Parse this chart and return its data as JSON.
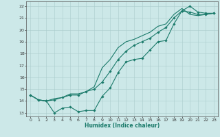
{
  "xlabel": "Humidex (Indice chaleur)",
  "background_color": "#cce8e8",
  "grid_color": "#aacccc",
  "line_color": "#1a7a6a",
  "xlim": [
    -0.5,
    23.5
  ],
  "ylim": [
    12.7,
    22.4
  ],
  "xticks": [
    0,
    1,
    2,
    3,
    4,
    5,
    6,
    7,
    8,
    9,
    10,
    11,
    12,
    13,
    14,
    15,
    16,
    17,
    18,
    19,
    20,
    21,
    22,
    23
  ],
  "yticks": [
    13,
    14,
    15,
    16,
    17,
    18,
    19,
    20,
    21,
    22
  ],
  "series1_x": [
    0,
    1,
    2,
    3,
    4,
    5,
    6,
    7,
    8,
    9,
    10,
    11,
    12,
    13,
    14,
    15,
    16,
    17,
    18,
    19,
    20,
    21,
    22,
    23
  ],
  "series1_y": [
    14.5,
    14.1,
    14.0,
    13.0,
    13.4,
    13.5,
    13.1,
    13.2,
    13.2,
    14.4,
    15.1,
    16.4,
    17.3,
    17.5,
    17.6,
    18.3,
    19.0,
    19.1,
    20.5,
    21.6,
    22.0,
    21.5,
    21.4,
    21.4
  ],
  "series2_x": [
    0,
    1,
    2,
    3,
    4,
    5,
    6,
    7,
    8,
    9,
    10,
    11,
    12,
    13,
    14,
    15,
    16,
    17,
    18,
    19,
    20,
    21,
    22,
    23
  ],
  "series2_y": [
    14.5,
    14.1,
    14.0,
    14.2,
    14.3,
    14.6,
    14.6,
    14.8,
    15.2,
    16.8,
    17.5,
    18.5,
    19.0,
    19.2,
    19.5,
    19.8,
    20.3,
    20.5,
    21.3,
    21.8,
    21.3,
    21.2,
    21.3,
    21.4
  ],
  "series3_x": [
    0,
    1,
    2,
    3,
    4,
    5,
    6,
    7,
    8,
    9,
    10,
    11,
    12,
    13,
    14,
    15,
    16,
    17,
    18,
    19,
    20,
    21,
    22,
    23
  ],
  "series3_y": [
    14.5,
    14.1,
    14.0,
    14.1,
    14.3,
    14.5,
    14.5,
    14.8,
    15.0,
    15.6,
    16.5,
    17.5,
    18.2,
    18.7,
    19.0,
    19.3,
    19.8,
    20.2,
    21.0,
    21.6,
    21.5,
    21.3,
    21.3,
    21.4
  ]
}
